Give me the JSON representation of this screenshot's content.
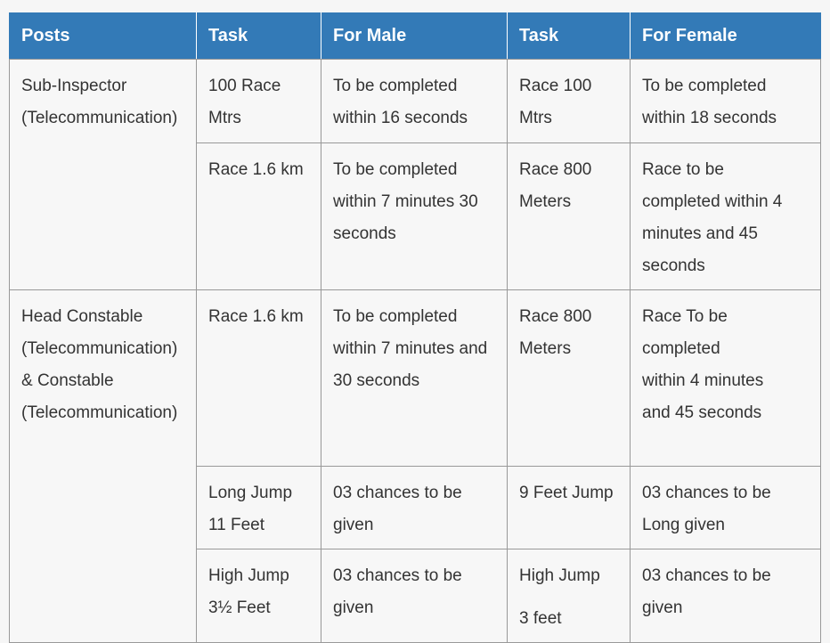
{
  "header": {
    "posts": "Posts",
    "task_male": "Task",
    "for_male": "For Male",
    "task_female": "Task",
    "for_female": "For Female"
  },
  "rows": [
    {
      "post": "Sub-Inspector\n(Telecommunication)",
      "task_male": "100 Race\nMtrs",
      "for_male": "To be completed\nwithin 16 seconds",
      "task_female": "Race 100\nMtrs",
      "for_female": "To be completed\nwithin 18 seconds"
    },
    {
      "task_male": "Race 1.6 km",
      "for_male": "To be completed\nwithin 7 minutes 30\nseconds",
      "task_female": "Race 800\nMeters",
      "for_female": "Race to be\ncompleted within 4\nminutes and 45\nseconds"
    },
    {
      "post": "Head Constable\n(Telecommunication)\n& Constable\n(Telecommunication)",
      "task_male": "Race 1.6 km",
      "for_male": "To be completed\nwithin 7 minutes and\n30 seconds",
      "task_female": "Race 800\nMeters",
      "for_female": "Race To be\ncompleted\nwithin 4 minutes\nand 45 seconds"
    },
    {
      "task_male": "Long Jump\n11 Feet",
      "for_male": "03 chances to be\ngiven",
      "task_female": "9 Feet Jump",
      "for_female": "03 chances to be\nLong given"
    },
    {
      "task_male": "High Jump\n3½ Feet",
      "for_male": "03 chances to be\ngiven",
      "task_female_line1": "High Jump",
      "task_female_line2": "3 feet",
      "for_female": "03 chances to be\ngiven"
    }
  ]
}
